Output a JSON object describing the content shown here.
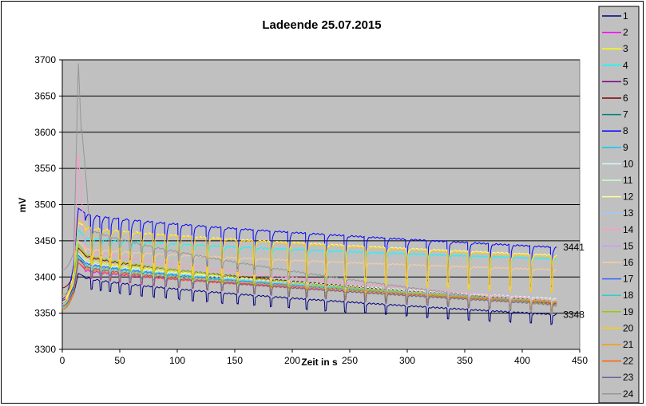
{
  "chart_data": {
    "type": "line",
    "title": "Ladeende 25.07.2015",
    "xlabel": "Zeit in s",
    "ylabel": "mV",
    "xlim": [
      0,
      450
    ],
    "ylim": [
      3300,
      3700
    ],
    "xticks": [
      0,
      50,
      100,
      150,
      200,
      250,
      300,
      350,
      400,
      450
    ],
    "yticks": [
      3300,
      3350,
      3400,
      3450,
      3500,
      3550,
      3600,
      3650,
      3700
    ],
    "grid": "horizontal",
    "legend": "right",
    "plot_background": "#C0C0C0",
    "annotations": [
      {
        "text": "3441",
        "x": 430,
        "y": 3441
      },
      {
        "text": "3348",
        "x": 430,
        "y": 3348
      }
    ],
    "series_model": "each series: start value at t=0, peak near t=12, level at t=20 and t=430, pulse dip depth (mV); pulsed charge-end curves",
    "series": [
      {
        "name": "1",
        "color": "#000080",
        "start": 3362,
        "peak": 3405,
        "level_start": 3400,
        "level_end": 3348,
        "dip": 14,
        "group": "low"
      },
      {
        "name": "2",
        "color": "#FF00FF",
        "start": 3365,
        "peak": 3420,
        "level_start": 3410,
        "level_end": 3368,
        "dip": 10,
        "group": "low"
      },
      {
        "name": "3",
        "color": "#FFFF00",
        "start": 3370,
        "peak": 3440,
        "level_start": 3425,
        "level_end": 3368,
        "dip": 10,
        "group": "low"
      },
      {
        "name": "4",
        "color": "#00FFFF",
        "start": 3362,
        "peak": 3465,
        "level_start": 3455,
        "level_end": 3425,
        "dip": 40,
        "group": "high"
      },
      {
        "name": "5",
        "color": "#800080",
        "start": 3368,
        "peak": 3425,
        "level_start": 3418,
        "level_end": 3366,
        "dip": 10,
        "group": "low"
      },
      {
        "name": "6",
        "color": "#800000",
        "start": 3385,
        "peak": 3440,
        "level_start": 3430,
        "level_end": 3366,
        "dip": 10,
        "group": "low"
      },
      {
        "name": "7",
        "color": "#008080",
        "start": 3365,
        "peak": 3430,
        "level_start": 3420,
        "level_end": 3364,
        "dip": 10,
        "group": "low"
      },
      {
        "name": "8",
        "color": "#0000FF",
        "start": 3370,
        "peak": 3495,
        "level_start": 3488,
        "level_end": 3441,
        "dip": 55,
        "group": "high"
      },
      {
        "name": "9",
        "color": "#00CCFF",
        "start": 3358,
        "peak": 3430,
        "level_start": 3420,
        "level_end": 3366,
        "dip": 10,
        "group": "low"
      },
      {
        "name": "10",
        "color": "#CCFFFF",
        "start": 3360,
        "peak": 3432,
        "level_start": 3422,
        "level_end": 3370,
        "dip": 10,
        "group": "low"
      },
      {
        "name": "11",
        "color": "#CCFFCC",
        "start": 3362,
        "peak": 3428,
        "level_start": 3418,
        "level_end": 3366,
        "dip": 10,
        "group": "low"
      },
      {
        "name": "12",
        "color": "#FFFF99",
        "start": 3365,
        "peak": 3475,
        "level_start": 3470,
        "level_end": 3430,
        "dip": 50,
        "group": "high"
      },
      {
        "name": "13",
        "color": "#99CCFF",
        "start": 3360,
        "peak": 3430,
        "level_start": 3420,
        "level_end": 3368,
        "dip": 10,
        "group": "low"
      },
      {
        "name": "14",
        "color": "#FF99CC",
        "start": 3372,
        "peak": 3570,
        "level_start": 3440,
        "level_end": 3368,
        "dip": 10,
        "group": "low"
      },
      {
        "name": "15",
        "color": "#CC99FF",
        "start": 3362,
        "peak": 3425,
        "level_start": 3415,
        "level_end": 3366,
        "dip": 10,
        "group": "low"
      },
      {
        "name": "16",
        "color": "#FFCC99",
        "start": 3365,
        "peak": 3450,
        "level_start": 3440,
        "level_end": 3410,
        "dip": 30,
        "group": "high"
      },
      {
        "name": "17",
        "color": "#3366FF",
        "start": 3360,
        "peak": 3430,
        "level_start": 3420,
        "level_end": 3364,
        "dip": 10,
        "group": "low"
      },
      {
        "name": "18",
        "color": "#33CCCC",
        "start": 3358,
        "peak": 3428,
        "level_start": 3418,
        "level_end": 3366,
        "dip": 10,
        "group": "low"
      },
      {
        "name": "19",
        "color": "#99CC00",
        "start": 3375,
        "peak": 3445,
        "level_start": 3432,
        "level_end": 3362,
        "dip": 10,
        "group": "low"
      },
      {
        "name": "20",
        "color": "#FFCC00",
        "start": 3360,
        "peak": 3480,
        "level_start": 3470,
        "level_end": 3428,
        "dip": 50,
        "group": "high"
      },
      {
        "name": "21",
        "color": "#FF9900",
        "start": 3356,
        "peak": 3425,
        "level_start": 3415,
        "level_end": 3366,
        "dip": 10,
        "group": "low"
      },
      {
        "name": "22",
        "color": "#FF6600",
        "start": 3355,
        "peak": 3420,
        "level_start": 3412,
        "level_end": 3364,
        "dip": 10,
        "group": "low"
      },
      {
        "name": "23",
        "color": "#666699",
        "start": 3360,
        "peak": 3425,
        "level_start": 3415,
        "level_end": 3362,
        "dip": 12,
        "group": "low"
      },
      {
        "name": "24",
        "color": "#969696",
        "start": 3410,
        "peak": 3695,
        "level_start": 3470,
        "level_end": 3360,
        "dip": 12,
        "group": "low"
      }
    ]
  }
}
